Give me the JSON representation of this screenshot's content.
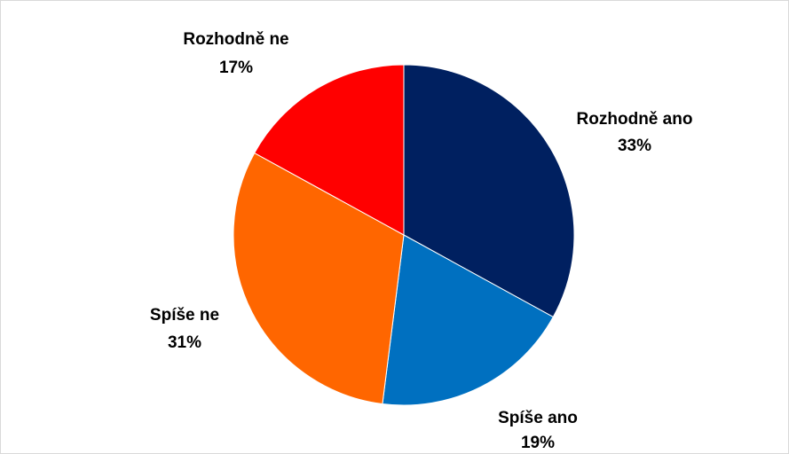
{
  "chart_data": {
    "type": "pie",
    "title": "",
    "categories": [
      "Rozhodně ano",
      "Spíše ano",
      "Spíše ne",
      "Rozhodně ne"
    ],
    "values": [
      33,
      19,
      31,
      17
    ],
    "labels": [
      "33%",
      "19%",
      "31%",
      "17%"
    ],
    "colors": [
      "#002060",
      "#0070C0",
      "#FF6600",
      "#FF0000"
    ],
    "start_angle_deg": 0,
    "direction": "clockwise",
    "legend": "none"
  }
}
